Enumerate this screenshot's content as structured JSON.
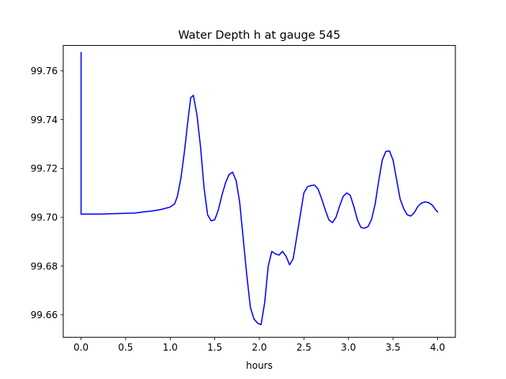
{
  "chart_data": {
    "type": "line",
    "title": "Water Depth h at gauge 545",
    "xlabel": "hours",
    "ylabel": "",
    "xlim": [
      -0.2,
      4.2
    ],
    "ylim": [
      99.6508,
      99.7704
    ],
    "xticks": [
      0.0,
      0.5,
      1.0,
      1.5,
      2.0,
      2.5,
      3.0,
      3.5,
      4.0
    ],
    "xtick_labels": [
      "0.0",
      "0.5",
      "1.0",
      "1.5",
      "2.0",
      "2.5",
      "3.0",
      "3.5",
      "4.0"
    ],
    "yticks": [
      99.66,
      99.68,
      99.7,
      99.72,
      99.74,
      99.76
    ],
    "ytick_labels": [
      "99.66",
      "99.68",
      "99.70",
      "99.72",
      "99.74",
      "99.76"
    ],
    "grid": false,
    "series": [
      {
        "color": "#0000ff",
        "x": [
          0.0,
          0.0,
          0.05,
          0.2,
          0.4,
          0.6,
          0.7,
          0.8,
          0.9,
          1.0,
          1.05,
          1.08,
          1.12,
          1.16,
          1.2,
          1.23,
          1.26,
          1.3,
          1.34,
          1.38,
          1.42,
          1.46,
          1.5,
          1.54,
          1.58,
          1.62,
          1.66,
          1.7,
          1.74,
          1.78,
          1.82,
          1.86,
          1.9,
          1.94,
          1.98,
          2.02,
          2.06,
          2.1,
          2.14,
          2.18,
          2.22,
          2.26,
          2.3,
          2.34,
          2.38,
          2.42,
          2.46,
          2.5,
          2.54,
          2.58,
          2.62,
          2.66,
          2.7,
          2.74,
          2.78,
          2.82,
          2.86,
          2.9,
          2.94,
          2.98,
          3.02,
          3.06,
          3.1,
          3.14,
          3.18,
          3.22,
          3.26,
          3.3,
          3.34,
          3.38,
          3.42,
          3.46,
          3.5,
          3.54,
          3.58,
          3.62,
          3.66,
          3.7,
          3.74,
          3.78,
          3.82,
          3.86,
          3.9,
          3.94,
          3.98,
          4.0
        ],
        "y": [
          99.7675,
          99.7013,
          99.7013,
          99.7013,
          99.7015,
          99.7017,
          99.7022,
          99.7026,
          99.7032,
          99.7042,
          99.7055,
          99.7085,
          99.716,
          99.727,
          99.74,
          99.749,
          99.75,
          99.742,
          99.729,
          99.712,
          99.701,
          99.6985,
          99.699,
          99.703,
          99.709,
          99.714,
          99.7175,
          99.7185,
          99.715,
          99.706,
          99.691,
          99.676,
          99.663,
          99.6583,
          99.6566,
          99.656,
          99.665,
          99.68,
          99.686,
          99.685,
          99.6845,
          99.686,
          99.684,
          99.6805,
          99.683,
          99.692,
          99.701,
          99.71,
          99.7125,
          99.713,
          99.7132,
          99.7115,
          99.7075,
          99.703,
          99.699,
          99.6978,
          99.7,
          99.7045,
          99.7085,
          99.71,
          99.709,
          99.7045,
          99.699,
          99.6958,
          99.6955,
          99.6962,
          99.6992,
          99.7055,
          99.715,
          99.7235,
          99.727,
          99.7272,
          99.7235,
          99.7155,
          99.7075,
          99.7035,
          99.701,
          99.7005,
          99.702,
          99.7045,
          99.7058,
          99.7063,
          99.706,
          99.705,
          99.703,
          99.7022
        ]
      }
    ]
  }
}
